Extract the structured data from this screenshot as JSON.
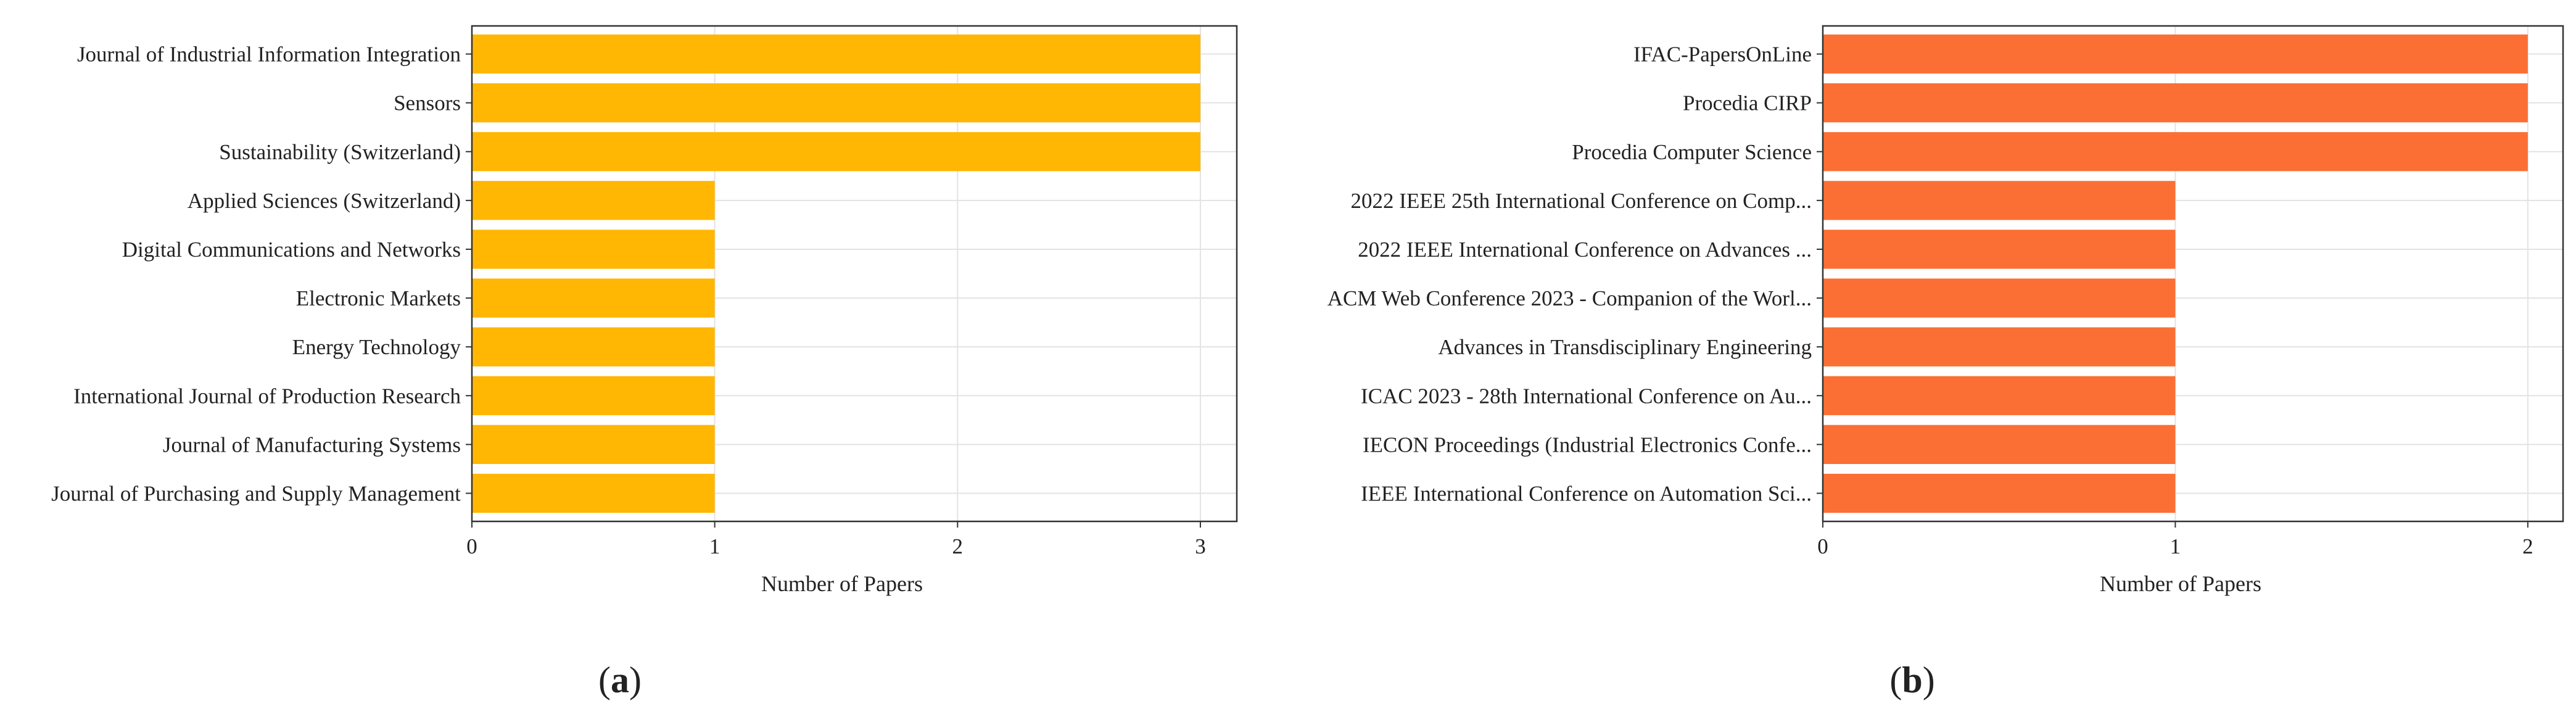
{
  "chart_data": [
    {
      "type": "bar",
      "orientation": "horizontal",
      "panel_label": "a",
      "color": "#FFB703",
      "categories": [
        "Journal of Industrial Information Integration",
        "Sensors",
        "Sustainability (Switzerland)",
        "Applied Sciences (Switzerland)",
        "Digital Communications and Networks",
        "Electronic Markets",
        "Energy Technology",
        "International Journal of Production Research",
        "Journal of Manufacturing Systems",
        "Journal of Purchasing and Supply Management"
      ],
      "values": [
        3,
        3,
        3,
        1,
        1,
        1,
        1,
        1,
        1,
        1
      ],
      "xlabel": "Number of Papers",
      "ylabel": "",
      "xticks": [
        0,
        1,
        2,
        3
      ],
      "xlim": [
        0,
        3.15
      ],
      "grid": true
    },
    {
      "type": "bar",
      "orientation": "horizontal",
      "panel_label": "b",
      "color": "#FB6F35",
      "categories": [
        "IFAC-PapersOnLine",
        "Procedia CIRP",
        "Procedia Computer Science",
        "2022 IEEE 25th International Conference on Comp...",
        "2022 IEEE International Conference on Advances ...",
        "ACM Web Conference 2023 - Companion of the Worl...",
        "Advances in Transdisciplinary Engineering",
        "ICAC 2023 - 28th International Conference on Au...",
        "IECON Proceedings (Industrial Electronics Confe...",
        "IEEE International Conference on Automation Sci..."
      ],
      "values": [
        2,
        2,
        2,
        1,
        1,
        1,
        1,
        1,
        1,
        1
      ],
      "xlabel": "Number of Papers",
      "ylabel": "",
      "xticks": [
        0,
        1,
        2
      ],
      "xlim": [
        0,
        2.1
      ],
      "grid": true
    }
  ]
}
